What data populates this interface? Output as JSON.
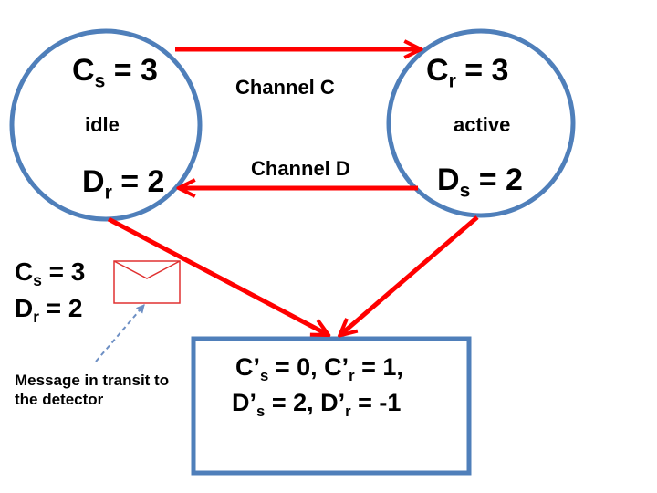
{
  "left_node": {
    "counter_top": {
      "base": "C",
      "sub": "s",
      "rest": " = 3"
    },
    "state": "idle",
    "counter_bottom": {
      "base": "D",
      "sub": "r",
      "rest": " = 2"
    }
  },
  "right_node": {
    "counter_top": {
      "base": "C",
      "sub": "r",
      "rest": " = 3"
    },
    "state": "active",
    "counter_bottom": {
      "base": "D",
      "sub": "s",
      "rest": " = 2"
    }
  },
  "channels": {
    "top": "Channel C",
    "bottom": "Channel D"
  },
  "message": {
    "line1": {
      "base": "C",
      "sub": "s",
      "rest": " = 3"
    },
    "line2": {
      "base": "D",
      "sub": "r",
      "rest": " = 2"
    },
    "note": "Message in transit to the detector",
    "envelope_icon": "envelope-icon"
  },
  "detector": {
    "line1": {
      "a": {
        "base": "C’",
        "sub": "s",
        "rest": " = 0, "
      },
      "b": {
        "base": "C’",
        "sub": "r",
        "rest": " = 1,"
      }
    },
    "line2": {
      "a": {
        "base": "D’",
        "sub": "s",
        "rest": " = 2, "
      },
      "b": {
        "base": "D’",
        "sub": "r",
        "rest": " = -1"
      }
    }
  },
  "colors": {
    "node_stroke": "#4f7fba",
    "arrow": "#ff0000",
    "envelope": "#e03030",
    "dashed_arrow": "#6d8fc4"
  }
}
